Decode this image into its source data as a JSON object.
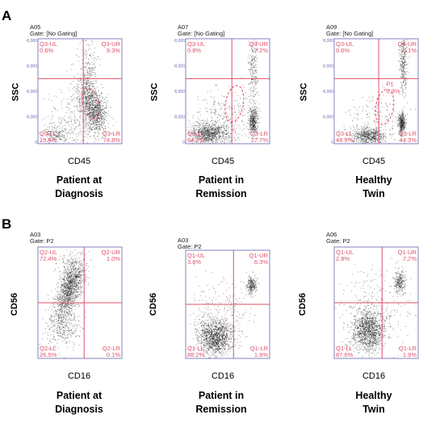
{
  "panels": [
    {
      "letter": "A",
      "y_axis_label": "SSC",
      "x_axis_label": "CD45",
      "plots": [
        {
          "sample": "A05",
          "gate": "Gate: [No Gating]",
          "caption_line1": "Patient at",
          "caption_line2": "Diagnosis",
          "quadrants": {
            "ul": "Q3-UL",
            "ul_pct": "0.6%",
            "ur": "Q3-UR",
            "ur_pct": "9.3%",
            "ll": "Q3-LL",
            "ll_pct": "15.4%",
            "lr": "Q3-LR",
            "lr_pct": "74.8%"
          },
          "extra_gate": null
        },
        {
          "sample": "A07",
          "gate": "Gate: [No Gating]",
          "caption_line1": "Patient in",
          "caption_line2": "Remission",
          "quadrants": {
            "ul": "Q3-UL",
            "ul_pct": "0.8%",
            "ur": "Q3-UR",
            "ur_pct": "7.2%",
            "ll": "Q3-LL",
            "ll_pct": "64.2%",
            "lr": "Q3-LR",
            "lr_pct": "27.7%"
          },
          "extra_gate": null
        },
        {
          "sample": "A09",
          "gate": "Gate: [No Gating]",
          "caption_line1": "Healthy",
          "caption_line2": "Twin",
          "quadrants": {
            "ul": "Q3-UL",
            "ul_pct": "0.6%",
            "ur": "Q3-UR",
            "ur_pct": "6.1%",
            "ll": "Q3-LL",
            "ll_pct": "48.9%",
            "lr": "Q3-LR",
            "lr_pct": "44.3%"
          },
          "extra_gate": {
            "name": "P1",
            "pct": "0.9%"
          }
        }
      ]
    },
    {
      "letter": "B",
      "y_axis_label": "CD56",
      "x_axis_label": "CD16",
      "plots": [
        {
          "sample": "A03",
          "gate": "Gate: P2",
          "caption_line1": "Patient at",
          "caption_line2": "Diagnosis",
          "quadrants": {
            "ul": "Q2-UL",
            "ul_pct": "72.4%",
            "ur": "Q2-UR",
            "ur_pct": "1.0%",
            "ll": "Q2-LL",
            "ll_pct": "26.5%",
            "lr": "Q2-LR",
            "lr_pct": "0.1%"
          },
          "extra_gate": null
        },
        {
          "sample": "A03",
          "gate": "Gate: P2",
          "caption_line1": "Patient in",
          "caption_line2": "Remission",
          "quadrants": {
            "ul": "Q1-UL",
            "ul_pct": "3.6%",
            "ur": "Q1-UR",
            "ur_pct": "6.3%",
            "ll": "Q1-LL",
            "ll_pct": "88.2%",
            "lr": "Q1-LR",
            "lr_pct": "1.9%"
          },
          "extra_gate": null
        },
        {
          "sample": "A06",
          "gate": "Gate: P2",
          "caption_line1": "Healthy",
          "caption_line2": "Twin",
          "quadrants": {
            "ul": "Q1-UL",
            "ul_pct": "2.8%",
            "ur": "Q1-UR",
            "ur_pct": "7.7%",
            "ll": "Q1-LL",
            "ll_pct": "87.6%",
            "lr": "Q1-LR",
            "lr_pct": "1.9%"
          },
          "extra_gate": null
        }
      ]
    }
  ],
  "colors": {
    "quadrant_line": "#e0506a",
    "frame": "#8080c0",
    "dots": "#222222"
  },
  "chart_data": [
    {
      "type": "scatter",
      "title": "Patient at Diagnosis",
      "xlabel": "CD45",
      "ylabel": "SSC",
      "x_scale": "log",
      "y_ticks": [
        "0",
        "100,000",
        "200,000",
        "300,000",
        "400,000"
      ],
      "quadrants": [
        {
          "name": "Q3-UL",
          "percent": 0.6
        },
        {
          "name": "Q3-UR",
          "percent": 9.3
        },
        {
          "name": "Q3-LL",
          "percent": 15.4
        },
        {
          "name": "Q3-LR",
          "percent": 74.8
        }
      ]
    },
    {
      "type": "scatter",
      "title": "Patient in Remission",
      "xlabel": "CD45",
      "ylabel": "SSC",
      "x_scale": "log",
      "y_ticks": [
        "0",
        "100,000",
        "200,000",
        "300,000",
        "400,000"
      ],
      "quadrants": [
        {
          "name": "Q3-UL",
          "percent": 0.8
        },
        {
          "name": "Q3-UR",
          "percent": 7.2
        },
        {
          "name": "Q3-LL",
          "percent": 64.2
        },
        {
          "name": "Q3-LR",
          "percent": 27.7
        }
      ]
    },
    {
      "type": "scatter",
      "title": "Healthy Twin",
      "xlabel": "CD45",
      "ylabel": "SSC",
      "x_scale": "log",
      "y_ticks": [
        "0",
        "100,000",
        "200,000",
        "300,000",
        "400,000"
      ],
      "quadrants": [
        {
          "name": "Q3-UL",
          "percent": 0.6
        },
        {
          "name": "Q3-UR",
          "percent": 6.1
        },
        {
          "name": "Q3-LL",
          "percent": 48.9
        },
        {
          "name": "Q3-LR",
          "percent": 44.3
        }
      ],
      "gates": [
        {
          "name": "P1",
          "percent": 0.9
        }
      ]
    },
    {
      "type": "scatter",
      "title": "Patient at Diagnosis",
      "xlabel": "CD16",
      "ylabel": "CD56",
      "x_scale": "log",
      "y_scale": "log",
      "quadrants": [
        {
          "name": "Q2-UL",
          "percent": 72.4
        },
        {
          "name": "Q2-UR",
          "percent": 1.0
        },
        {
          "name": "Q2-LL",
          "percent": 26.5
        },
        {
          "name": "Q2-LR",
          "percent": 0.1
        }
      ]
    },
    {
      "type": "scatter",
      "title": "Patient in Remission",
      "xlabel": "CD16",
      "ylabel": "CD56",
      "x_scale": "log",
      "y_scale": "log",
      "quadrants": [
        {
          "name": "Q1-UL",
          "percent": 3.6
        },
        {
          "name": "Q1-UR",
          "percent": 6.3
        },
        {
          "name": "Q1-LL",
          "percent": 88.2
        },
        {
          "name": "Q1-LR",
          "percent": 1.9
        }
      ]
    },
    {
      "type": "scatter",
      "title": "Healthy Twin",
      "xlabel": "CD16",
      "ylabel": "CD56",
      "x_scale": "log",
      "y_scale": "log",
      "quadrants": [
        {
          "name": "Q1-UL",
          "percent": 2.8
        },
        {
          "name": "Q1-UR",
          "percent": 7.7
        },
        {
          "name": "Q1-LL",
          "percent": 87.6
        },
        {
          "name": "Q1-LR",
          "percent": 1.9
        }
      ]
    }
  ]
}
